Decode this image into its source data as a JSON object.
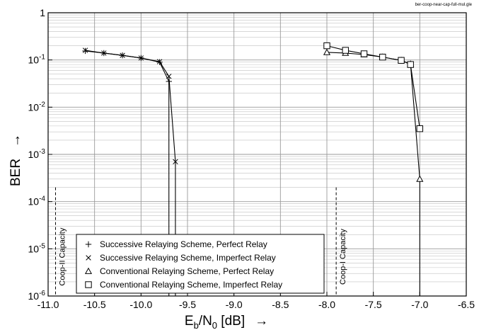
{
  "filename_label": "ber-coop-near-cap-full-mul.gle",
  "chart_data": {
    "type": "line",
    "title": "",
    "xlabel_main": "E",
    "xlabel_sub1": "b",
    "xlabel_mid": "/N",
    "xlabel_sub2": "0",
    "xlabel_unit": " [dB]",
    "xlabel_arrow": "→",
    "ylabel": "BER",
    "ylabel_arrow": "→",
    "xlim": [
      -11.0,
      -6.5
    ],
    "ylim": [
      1e-06,
      1
    ],
    "yscale": "log",
    "grid": true,
    "x_ticks": [
      "-11.0",
      "-10.5",
      "-10.0",
      "-9.5",
      "-9.0",
      "-8.5",
      "-8.0",
      "-7.5",
      "-7.0",
      "-6.5"
    ],
    "x_tick_values": [
      -11.0,
      -10.5,
      -10.0,
      -9.5,
      -9.0,
      -8.5,
      -8.0,
      -7.5,
      -7.0,
      -6.5
    ],
    "y_ticks": [
      {
        "value": 1e-06,
        "base": "10",
        "exp": "-6"
      },
      {
        "value": 1e-05,
        "base": "10",
        "exp": "-5"
      },
      {
        "value": 0.0001,
        "base": "10",
        "exp": "-4"
      },
      {
        "value": 0.001,
        "base": "10",
        "exp": "-3"
      },
      {
        "value": 0.01,
        "base": "10",
        "exp": "-2"
      },
      {
        "value": 0.1,
        "base": "10",
        "exp": "-1"
      },
      {
        "value": 1,
        "base": "1",
        "exp": ""
      }
    ],
    "series": [
      {
        "name": "Successive Relaying Scheme, Perfect Relay",
        "marker": "plus",
        "x": [
          -10.6,
          -10.4,
          -10.2,
          -10.0,
          -9.8,
          -9.7
        ],
        "y": [
          0.155,
          0.14,
          0.125,
          0.11,
          0.09,
          0.035
        ]
      },
      {
        "name": "Successive Relaying Scheme, Imperfect Relay",
        "marker": "cross",
        "x": [
          -10.6,
          -10.4,
          -10.2,
          -10.0,
          -9.8,
          -9.7,
          -9.63
        ],
        "y": [
          0.16,
          0.14,
          0.125,
          0.11,
          0.092,
          0.045,
          0.0007
        ]
      },
      {
        "name": "Conventional Relaying Scheme, Perfect Relay",
        "marker": "triangle",
        "x": [
          -8.0,
          -7.8,
          -7.6,
          -7.4,
          -7.2,
          -7.1,
          -7.0
        ],
        "y": [
          0.145,
          0.14,
          0.13,
          0.115,
          0.098,
          0.082,
          0.0003
        ]
      },
      {
        "name": "Conventional Relaying Scheme, Imperfect Relay",
        "marker": "square",
        "x": [
          -8.0,
          -7.8,
          -7.6,
          -7.4,
          -7.2,
          -7.1,
          -7.0
        ],
        "y": [
          0.2,
          0.16,
          0.135,
          0.115,
          0.098,
          0.08,
          0.0035
        ]
      }
    ],
    "drops": [
      {
        "x": -9.7,
        "from": 0.035
      },
      {
        "x": -9.63,
        "from": 0.0007
      },
      {
        "x": -7.0,
        "from": 0.0003
      }
    ],
    "capacity_lines": [
      {
        "x": -10.92,
        "label": "Coop-II Capacity",
        "y_top": 0.0002
      },
      {
        "x": -7.9,
        "label": "Coop-I Capacity",
        "y_top": 0.0002
      }
    ],
    "legend_position": "bottom-center"
  }
}
